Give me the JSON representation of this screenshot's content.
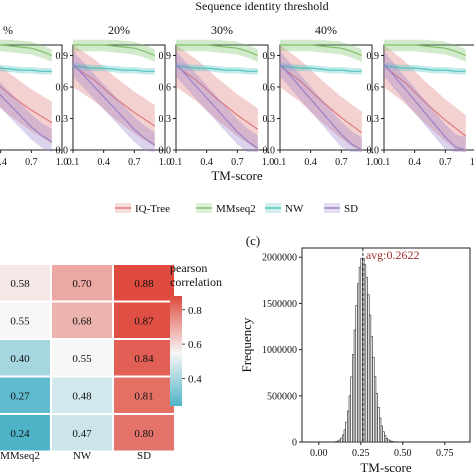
{
  "top_title": "Sequence identity threshold",
  "panel_c_label": "(c)",
  "legend": [
    {
      "name": "IQ-Tree",
      "color": "#e07a7a"
    },
    {
      "name": "MMseq2",
      "color": "#7cc26a"
    },
    {
      "name": "NW",
      "color": "#4fc4c0"
    },
    {
      "name": "SD",
      "color": "#9b80c8"
    }
  ],
  "chart_data": [
    {
      "type": "line",
      "xlabel": "TM-score",
      "ylabel": "",
      "xlim": [
        0.1,
        1.0
      ],
      "ylim": [
        0.0,
        1.0
      ],
      "x_ticks": [
        "0.1",
        "0.4",
        "0.7",
        "1.0"
      ],
      "y_ticks": [
        "0.0",
        "0.3",
        "0.6",
        "0.9"
      ],
      "panels": [
        {
          "title": "%",
          "x_ticks_visible": [
            "0.7",
            "1.0"
          ]
        },
        {
          "title": "20%"
        },
        {
          "title": "30%"
        },
        {
          "title": "40%"
        },
        {
          "title": ""
        }
      ],
      "x": [
        0.1,
        0.2,
        0.3,
        0.4,
        0.5,
        0.6,
        0.7,
        0.8,
        0.9
      ],
      "series": [
        {
          "name": "IQ-Tree",
          "color": "#e07a7a",
          "values": [
            0.8,
            0.74,
            0.68,
            0.6,
            0.52,
            0.45,
            0.38,
            0.32,
            0.26
          ],
          "band": 0.2
        },
        {
          "name": "MMseq2",
          "color": "#7cc26a",
          "values": [
            1.0,
            1.0,
            1.0,
            1.0,
            0.99,
            0.98,
            0.97,
            0.94,
            0.9
          ],
          "band": 0.06
        },
        {
          "name": "NW",
          "color": "#4fc4c0",
          "values": [
            0.8,
            0.79,
            0.78,
            0.78,
            0.77,
            0.76,
            0.76,
            0.75,
            0.75
          ],
          "band": 0.03
        },
        {
          "name": "SD",
          "color": "#9b80c8",
          "values": [
            0.82,
            0.72,
            0.62,
            0.52,
            0.42,
            0.32,
            0.22,
            0.14,
            0.08
          ],
          "band": 0.12
        }
      ]
    },
    {
      "type": "heatmap",
      "columns": [
        "MMseq2",
        "NW",
        "SD"
      ],
      "rows": [
        [
          0.58,
          0.7,
          0.88
        ],
        [
          0.55,
          0.68,
          0.87
        ],
        [
          0.4,
          0.55,
          0.84
        ],
        [
          0.27,
          0.48,
          0.81
        ],
        [
          0.24,
          0.47,
          0.8
        ]
      ],
      "row_labels": [],
      "colorbar_title": [
        "pearson",
        "correlation"
      ],
      "colorbar_ticks": [
        "0.8",
        "0.6",
        "0.4"
      ],
      "colorbar_range": [
        0.24,
        0.88
      ],
      "colors": {
        "low": "#4fb3c8",
        "mid": "#f7f7f7",
        "high": "#de4a3e"
      }
    },
    {
      "type": "bar",
      "subtype": "histogram",
      "title": "",
      "xlabel": "TM-score",
      "ylabel": "Frequency",
      "xlim": [
        -0.1,
        0.9
      ],
      "ylim": [
        0,
        2100000
      ],
      "x_ticks": [
        "0.00",
        "0.25",
        "0.50",
        "0.75"
      ],
      "y_ticks": [
        "0",
        "500000",
        "1000000",
        "1500000",
        "2000000"
      ],
      "bin_width": 0.01,
      "mean": 0.2622,
      "annotation": "avg:0.2622",
      "annotation_color": "#a0302a",
      "distribution": {
        "center": 0.26,
        "sd": 0.045,
        "peak": 2000000
      }
    }
  ]
}
